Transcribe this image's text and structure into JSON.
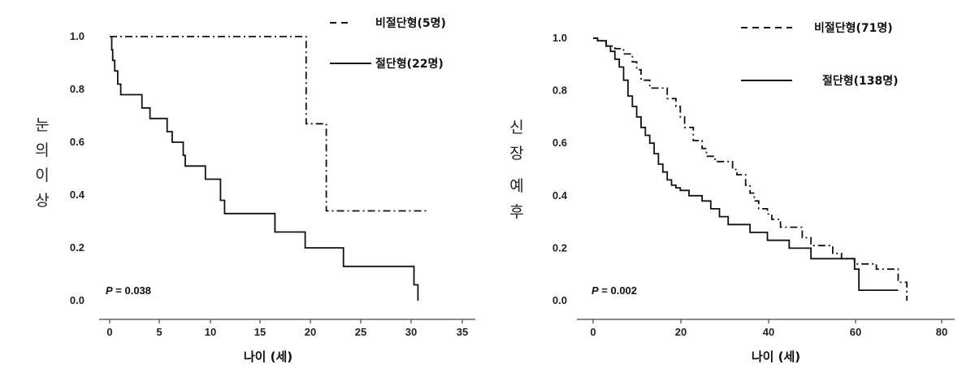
{
  "chart_data": [
    {
      "type": "line",
      "title": "",
      "xlabel": "나이 (세)",
      "ylabel": "눈의 이상",
      "xlim": [
        0,
        35
      ],
      "ylim": [
        0,
        1
      ],
      "xticks": [
        "0",
        "5",
        "10",
        "15",
        "20",
        "25",
        "30",
        "35"
      ],
      "yticks": [
        "0.0",
        "0.2",
        "0.4",
        "0.6",
        "0.8",
        "1.0"
      ],
      "legend_position": "top-right",
      "annotation": {
        "p_label": "P",
        "p_rest": " = 0.038"
      },
      "series": [
        {
          "name": "비절단형(5명)",
          "style": "dash-dot",
          "x": [
            0,
            19.5,
            19.5,
            21.5,
            21.5,
            31.5
          ],
          "y": [
            1.0,
            1.0,
            0.67,
            0.67,
            0.34,
            0.34
          ]
        },
        {
          "name": "절단형(22명)",
          "style": "solid",
          "x": [
            0.2,
            0.2,
            0.3,
            0.3,
            0.5,
            0.5,
            0.8,
            0.8,
            1.1,
            1.1,
            3.2,
            3.2,
            4.0,
            4.0,
            5.7,
            5.7,
            6.2,
            6.2,
            7.3,
            7.3,
            7.5,
            7.5,
            9.5,
            9.5,
            11.0,
            11.0,
            11.4,
            11.4,
            16.4,
            16.4,
            19.4,
            19.4,
            23.2,
            23.2,
            30.2,
            30.2,
            30.6,
            30.6
          ],
          "y": [
            1.0,
            0.95,
            0.95,
            0.91,
            0.91,
            0.87,
            0.87,
            0.82,
            0.82,
            0.78,
            0.78,
            0.73,
            0.73,
            0.69,
            0.69,
            0.64,
            0.64,
            0.6,
            0.6,
            0.55,
            0.55,
            0.51,
            0.51,
            0.46,
            0.46,
            0.38,
            0.38,
            0.33,
            0.33,
            0.26,
            0.26,
            0.2,
            0.2,
            0.13,
            0.13,
            0.06,
            0.06,
            0.0
          ]
        }
      ]
    },
    {
      "type": "line",
      "title": "",
      "xlabel": "나이 (세)",
      "ylabel": "신장 예후",
      "xlim": [
        0,
        80
      ],
      "ylim": [
        0,
        1
      ],
      "xticks": [
        "0",
        "20",
        "40",
        "60",
        "80"
      ],
      "yticks": [
        "0.0",
        "0.2",
        "0.4",
        "0.6",
        "0.8",
        "1.0"
      ],
      "legend_position": "top-right",
      "annotation": {
        "p_label": "P",
        "p_rest": " = 0.002"
      },
      "series": [
        {
          "name": "비절단형(71명)",
          "style": "dash-dot",
          "x": [
            0,
            1,
            1,
            3,
            3,
            5,
            5,
            7,
            7,
            9,
            9,
            10,
            10,
            11,
            11,
            13,
            13,
            17,
            17,
            19,
            19,
            20,
            20,
            21,
            21,
            23,
            23,
            25,
            25,
            26,
            26,
            28,
            28,
            32,
            32,
            33,
            33,
            35,
            35,
            36,
            36,
            37,
            37,
            38,
            38,
            40,
            40,
            41,
            41,
            43,
            43,
            48,
            48,
            50,
            50,
            55,
            55,
            57,
            57,
            60,
            60,
            65,
            65,
            70,
            70,
            72,
            72
          ],
          "y": [
            1.0,
            1.0,
            0.99,
            0.99,
            0.97,
            0.97,
            0.96,
            0.96,
            0.94,
            0.94,
            0.91,
            0.91,
            0.88,
            0.88,
            0.84,
            0.84,
            0.81,
            0.81,
            0.77,
            0.77,
            0.74,
            0.74,
            0.7,
            0.7,
            0.66,
            0.66,
            0.61,
            0.61,
            0.58,
            0.58,
            0.55,
            0.55,
            0.53,
            0.53,
            0.5,
            0.5,
            0.48,
            0.48,
            0.44,
            0.44,
            0.41,
            0.41,
            0.38,
            0.38,
            0.35,
            0.35,
            0.33,
            0.33,
            0.31,
            0.31,
            0.28,
            0.28,
            0.24,
            0.24,
            0.21,
            0.21,
            0.18,
            0.18,
            0.16,
            0.16,
            0.14,
            0.14,
            0.12,
            0.12,
            0.07,
            0.07,
            0.0
          ]
        },
        {
          "name": "절단형(138명)",
          "style": "solid",
          "x": [
            0,
            1,
            1,
            3,
            3,
            4,
            4,
            5,
            5,
            6,
            6,
            7,
            7,
            8,
            8,
            9,
            9,
            10,
            10,
            11,
            11,
            12,
            12,
            13,
            13,
            14,
            14,
            15,
            15,
            16,
            16,
            17,
            17,
            18,
            18,
            19,
            19,
            20,
            20,
            22,
            22,
            25,
            25,
            27,
            27,
            29,
            29,
            31,
            31,
            36,
            36,
            40,
            40,
            45,
            45,
            50,
            50,
            60,
            60,
            61,
            61,
            70
          ],
          "y": [
            1.0,
            1.0,
            0.99,
            0.99,
            0.97,
            0.97,
            0.95,
            0.95,
            0.92,
            0.92,
            0.89,
            0.89,
            0.84,
            0.84,
            0.78,
            0.78,
            0.74,
            0.74,
            0.7,
            0.7,
            0.66,
            0.66,
            0.63,
            0.63,
            0.6,
            0.6,
            0.56,
            0.56,
            0.52,
            0.52,
            0.49,
            0.49,
            0.46,
            0.46,
            0.44,
            0.44,
            0.43,
            0.43,
            0.42,
            0.42,
            0.4,
            0.4,
            0.38,
            0.38,
            0.35,
            0.35,
            0.32,
            0.32,
            0.29,
            0.29,
            0.26,
            0.26,
            0.23,
            0.23,
            0.2,
            0.2,
            0.16,
            0.16,
            0.12,
            0.12,
            0.04,
            0.04
          ]
        }
      ]
    }
  ]
}
